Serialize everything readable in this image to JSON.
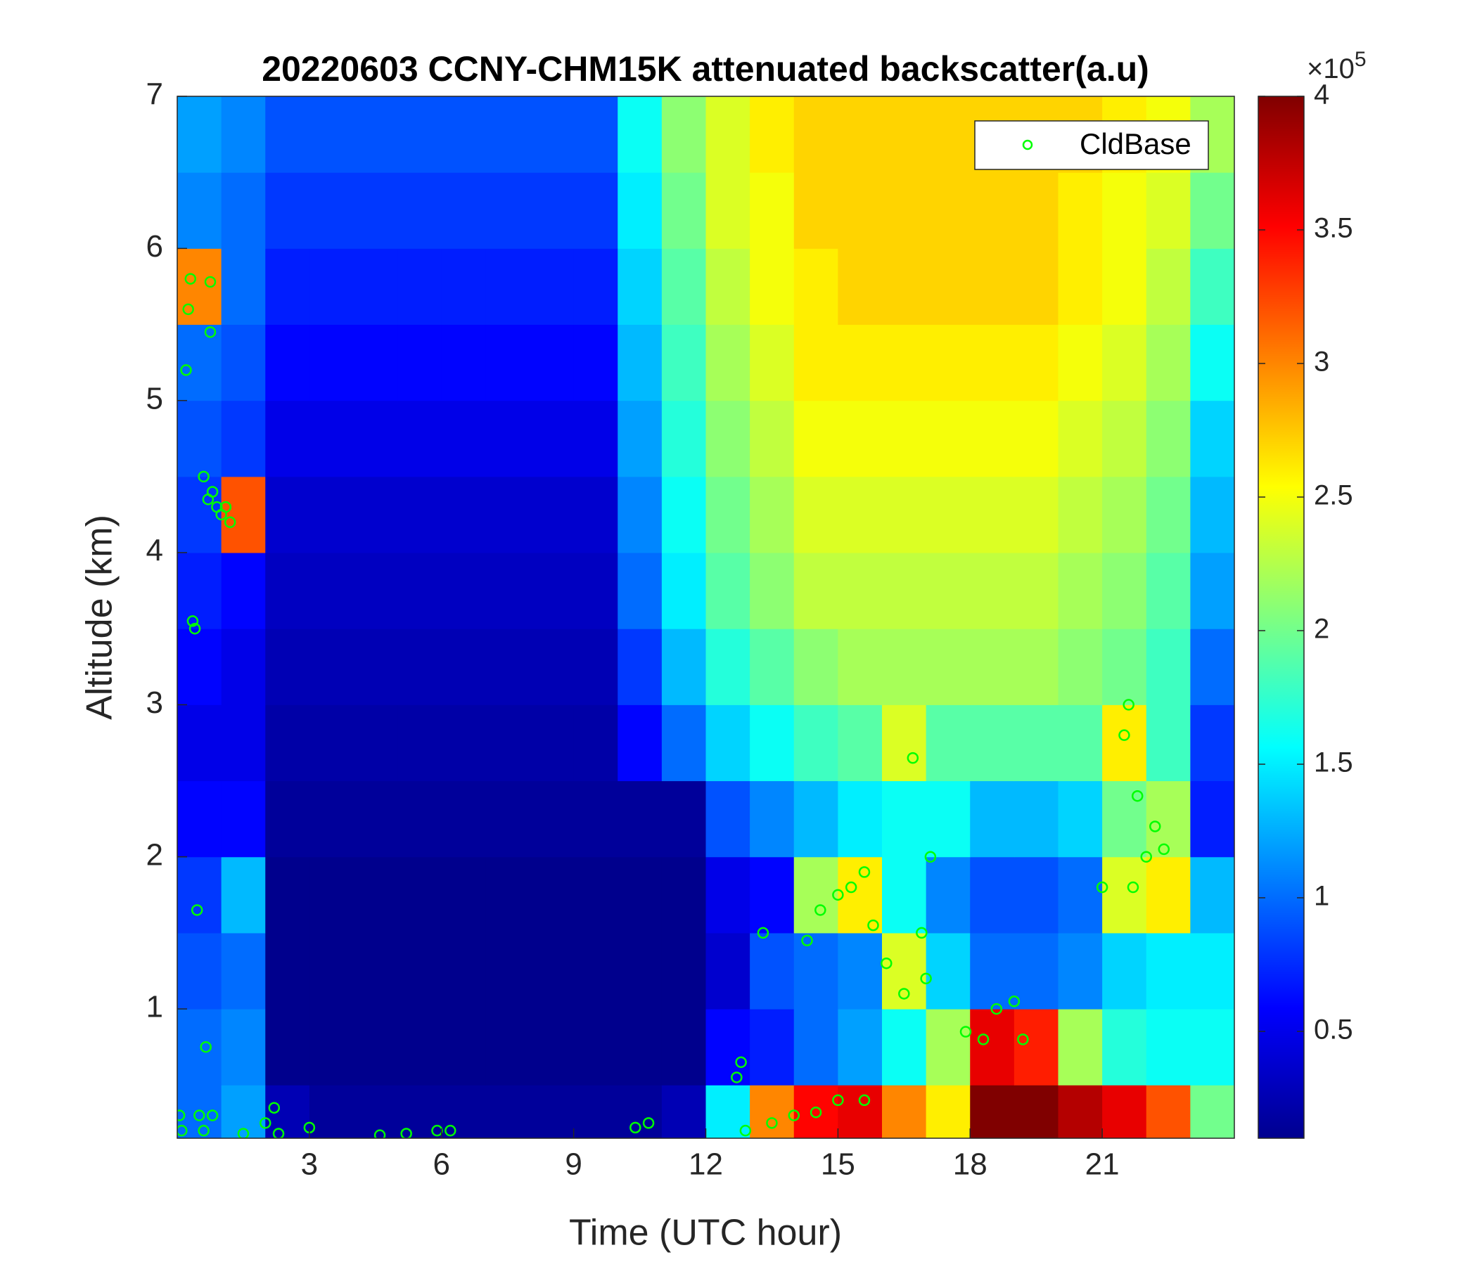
{
  "chart_data": {
    "type": "heatmap",
    "title": "20220603 CCNY-CHM15K attenuated backscatter(a.u)",
    "x_label": "Time (UTC hour)",
    "y_label": "Altitude (km)",
    "xlim": [
      0,
      24
    ],
    "ylim": [
      0.15,
      7
    ],
    "xticks": [
      3,
      6,
      9,
      12,
      15,
      18,
      21
    ],
    "yticks": [
      1,
      2,
      3,
      4,
      5,
      6,
      7
    ],
    "colormap": "jet",
    "clim": [
      0.1,
      4
    ],
    "cticks": [
      0.5,
      1,
      1.5,
      2,
      2.5,
      3,
      3.5,
      4
    ],
    "colorbar_multiplier": {
      "base": "×10",
      "exponent": "5"
    },
    "x_edges": [
      0,
      1,
      2,
      3,
      4,
      5,
      6,
      7,
      8,
      9,
      10,
      11,
      12,
      13,
      14,
      15,
      16,
      17,
      18,
      19,
      20,
      21,
      22,
      23,
      24
    ],
    "y_edges": [
      0.15,
      0.5,
      1,
      1.5,
      2,
      2.5,
      3,
      3.5,
      4,
      4.5,
      5,
      5.5,
      6,
      6.5,
      7
    ],
    "z": [
      [
        1.0,
        1.2,
        0.3,
        0.2,
        0.2,
        0.2,
        0.2,
        0.2,
        0.2,
        0.2,
        0.2,
        0.3,
        1.5,
        3.0,
        3.5,
        3.6,
        3.0,
        2.6,
        4.0,
        4.0,
        3.8,
        3.6,
        3.2,
        2.0
      ],
      [
        1.0,
        1.1,
        0.15,
        0.15,
        0.15,
        0.15,
        0.15,
        0.15,
        0.15,
        0.15,
        0.15,
        0.15,
        0.6,
        0.7,
        1.0,
        1.2,
        1.6,
        2.2,
        3.6,
        3.4,
        2.2,
        1.7,
        1.6,
        1.6
      ],
      [
        0.9,
        1.0,
        0.15,
        0.15,
        0.15,
        0.15,
        0.15,
        0.15,
        0.15,
        0.15,
        0.15,
        0.15,
        0.4,
        0.9,
        1.0,
        1.1,
        2.4,
        1.4,
        1.0,
        1.0,
        1.1,
        1.4,
        1.5,
        1.5
      ],
      [
        0.8,
        1.3,
        0.15,
        0.15,
        0.15,
        0.15,
        0.15,
        0.15,
        0.15,
        0.15,
        0.15,
        0.15,
        0.5,
        0.6,
        2.2,
        2.6,
        1.6,
        1.1,
        0.9,
        0.9,
        1.0,
        2.4,
        2.6,
        1.3
      ],
      [
        0.6,
        0.6,
        0.2,
        0.2,
        0.2,
        0.2,
        0.2,
        0.2,
        0.2,
        0.2,
        0.2,
        0.2,
        0.9,
        1.1,
        1.3,
        1.5,
        1.6,
        1.6,
        1.3,
        1.3,
        1.4,
        2.0,
        2.2,
        0.7
      ],
      [
        0.5,
        0.5,
        0.25,
        0.25,
        0.25,
        0.25,
        0.25,
        0.25,
        0.25,
        0.25,
        0.6,
        1.0,
        1.4,
        1.6,
        1.8,
        1.9,
        2.4,
        1.9,
        1.9,
        1.9,
        1.9,
        2.6,
        1.8,
        0.8
      ],
      [
        0.6,
        0.5,
        0.3,
        0.3,
        0.3,
        0.3,
        0.3,
        0.3,
        0.3,
        0.3,
        0.8,
        1.3,
        1.7,
        1.9,
        2.1,
        2.2,
        2.2,
        2.2,
        2.2,
        2.2,
        2.1,
        2.0,
        1.8,
        1.0
      ],
      [
        0.7,
        0.6,
        0.35,
        0.35,
        0.35,
        0.35,
        0.35,
        0.35,
        0.35,
        0.35,
        1.0,
        1.5,
        1.9,
        2.1,
        2.3,
        2.3,
        2.3,
        2.3,
        2.3,
        2.3,
        2.2,
        2.1,
        1.9,
        1.2
      ],
      [
        0.8,
        3.2,
        0.4,
        0.4,
        0.4,
        0.4,
        0.4,
        0.4,
        0.4,
        0.4,
        1.1,
        1.6,
        2.0,
        2.2,
        2.4,
        2.4,
        2.4,
        2.4,
        2.4,
        2.4,
        2.3,
        2.2,
        2.0,
        1.3
      ],
      [
        0.9,
        0.8,
        0.5,
        0.5,
        0.5,
        0.5,
        0.5,
        0.5,
        0.5,
        0.5,
        1.2,
        1.7,
        2.1,
        2.3,
        2.5,
        2.5,
        2.5,
        2.5,
        2.5,
        2.5,
        2.4,
        2.3,
        2.1,
        1.4
      ],
      [
        1.0,
        0.9,
        0.6,
        0.6,
        0.6,
        0.6,
        0.6,
        0.6,
        0.6,
        0.6,
        1.3,
        1.8,
        2.2,
        2.4,
        2.6,
        2.6,
        2.6,
        2.6,
        2.6,
        2.6,
        2.5,
        2.4,
        2.2,
        1.6
      ],
      [
        3.0,
        1.0,
        0.7,
        0.7,
        0.7,
        0.7,
        0.7,
        0.7,
        0.7,
        0.7,
        1.4,
        1.9,
        2.3,
        2.5,
        2.6,
        2.7,
        2.7,
        2.7,
        2.7,
        2.7,
        2.6,
        2.5,
        2.3,
        1.8
      ],
      [
        1.1,
        1.0,
        0.8,
        0.8,
        0.8,
        0.8,
        0.8,
        0.8,
        0.8,
        0.8,
        1.5,
        2.0,
        2.4,
        2.5,
        2.7,
        2.7,
        2.7,
        2.7,
        2.7,
        2.7,
        2.6,
        2.5,
        2.4,
        2.0
      ],
      [
        1.2,
        1.1,
        0.9,
        0.9,
        0.9,
        0.9,
        0.9,
        0.9,
        0.9,
        0.9,
        1.6,
        2.1,
        2.4,
        2.6,
        2.7,
        2.7,
        2.7,
        2.7,
        2.7,
        2.7,
        2.7,
        2.6,
        2.5,
        2.2
      ]
    ],
    "scatter": {
      "name": "CldBase",
      "color": "#00ff00",
      "x": [
        0.05,
        0.1,
        0.2,
        0.25,
        0.3,
        0.35,
        0.4,
        0.45,
        0.5,
        0.6,
        0.6,
        0.7,
        0.8,
        0.9,
        1.0,
        1.1,
        1.2,
        0.75,
        0.75,
        0.65,
        0.8,
        1.5,
        2.0,
        2.2,
        2.3,
        3.0,
        4.6,
        5.2,
        5.9,
        6.2,
        10.4,
        10.7,
        12.7,
        12.8,
        12.9,
        13.5,
        14.0,
        14.5,
        13.3,
        14.3,
        14.6,
        15.0,
        15.3,
        15.6,
        15.8,
        16.1,
        16.5,
        16.7,
        16.9,
        17.1,
        17.0,
        15.0,
        15.6,
        17.9,
        18.3,
        18.6,
        19.0,
        19.2,
        21.0,
        21.5,
        21.6,
        21.8,
        22.0,
        22.2,
        22.4,
        21.7
      ],
      "y": [
        0.3,
        0.2,
        5.2,
        5.6,
        5.8,
        3.55,
        3.5,
        1.65,
        0.3,
        0.2,
        4.5,
        4.35,
        4.4,
        4.3,
        4.25,
        4.3,
        4.2,
        5.45,
        5.78,
        0.75,
        0.3,
        0.18,
        0.25,
        0.35,
        0.18,
        0.22,
        0.17,
        0.18,
        0.2,
        0.2,
        0.22,
        0.25,
        0.55,
        0.65,
        0.2,
        0.25,
        0.3,
        0.32,
        1.5,
        1.45,
        1.65,
        1.75,
        1.8,
        1.9,
        1.55,
        1.3,
        1.1,
        2.65,
        1.5,
        2.0,
        1.2,
        0.4,
        0.4,
        0.85,
        0.8,
        1.0,
        1.05,
        0.8,
        1.8,
        2.8,
        3.0,
        2.4,
        2.0,
        2.2,
        2.05,
        1.8
      ]
    },
    "legend": "upper right"
  }
}
